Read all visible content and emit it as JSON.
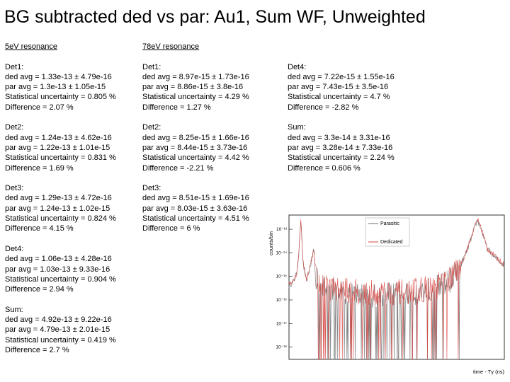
{
  "title": "BG subtracted ded vs par: Au1, Sum WF, Unweighted",
  "columns": [
    {
      "heading": "5eV resonance",
      "lines": [
        "",
        "Det1:",
        "ded avg = 1.33e-13 ± 4.79e-16",
        "par avg = 1.3e-13 ± 1.05e-15",
        "Statistical uncertainty = 0.805 %",
        "Difference = 2.07 %",
        "",
        "Det2:",
        "ded avg = 1.24e-13 ± 4.62e-16",
        "par avg = 1.22e-13 ± 1.01e-15",
        "Statistical uncertainty = 0.831 %",
        "Difference = 1.69 %",
        "",
        "Det3:",
        "ded avg = 1.29e-13 ± 4.72e-16",
        "par avg = 1.24e-13 ± 1.02e-15",
        "Statistical uncertainty = 0.824 %",
        "Difference = 4.15 %",
        "",
        "Det4:",
        "ded avg = 1.06e-13 ± 4.28e-16",
        "par avg = 1.03e-13 ± 9.33e-16",
        "Statistical uncertainty = 0.904 %",
        "Difference = 2.94 %",
        "",
        "Sum:",
        "ded avg = 4.92e-13 ± 9.22e-16",
        "par avg = 4.79e-13 ± 2.01e-15",
        "Statistical uncertainty = 0.419 %",
        "Difference = 2.7 %"
      ]
    },
    {
      "heading": "78eV resonance",
      "lines": [
        "",
        "Det1:",
        "ded avg = 8.97e-15 ± 1.73e-16",
        "par avg = 8.86e-15 ± 3.8e-16",
        "Statistical uncertainty = 4.29 %",
        "Difference = 1.27 %",
        "",
        "Det2:",
        "ded avg = 8.25e-15 ± 1.66e-16",
        "par avg = 8.44e-15 ± 3.73e-16",
        "Statistical uncertainty = 4.42 %",
        "Difference = -2.21 %",
        "",
        "Det3:",
        "ded avg = 8.51e-15 ± 1.69e-16",
        "par avg = 8.03e-15 ± 3.63e-16",
        "Statistical uncertainty = 4.51 %",
        "Difference = 6 %"
      ]
    },
    {
      "heading": "",
      "lines": [
        "",
        "Det4:",
        "ded avg = 7.22e-15 ± 1.55e-16",
        "par avg = 7.43e-15 ± 3.5e-16",
        "Statistical uncertainty = 4.7 %",
        "Difference = -2.82 %",
        "",
        "Sum:",
        "ded avg = 3.3e-14 ± 3.31e-16",
        "par avg = 3.28e-14 ± 7.33e-16",
        "Statistical uncertainty = 2.24 %",
        "Difference = 0.606 %"
      ]
    }
  ],
  "chart_data": {
    "type": "line",
    "xlabel": "time - Tγ (ns)",
    "ylabel": "counts/bin",
    "yscale": "log",
    "ylim": [
      3e-19,
      4e-13
    ],
    "yticks": [
      "10⁻¹³",
      "10⁻¹⁴",
      "10⁻¹⁵",
      "10⁻¹⁶",
      "10⁻¹⁷",
      "10⁻¹⁸"
    ],
    "legend_position": "top-right",
    "series": [
      {
        "name": "Parasitic",
        "color": "#6b6b6b",
        "profile": [
          [
            0.0,
            4e-16
          ],
          [
            0.02,
            6e-16
          ],
          [
            0.035,
            1.2e-15
          ],
          [
            0.045,
            8e-15
          ],
          [
            0.055,
            2.5e-13
          ],
          [
            0.065,
            4e-15
          ],
          [
            0.08,
            6e-16
          ],
          [
            0.1,
            3e-15
          ],
          [
            0.115,
            1.5e-14
          ],
          [
            0.125,
            9e-16
          ],
          [
            0.16,
            3e-16
          ],
          [
            0.25,
            2e-16
          ],
          [
            0.4,
            1.5e-16
          ],
          [
            0.55,
            1.8e-16
          ],
          [
            0.68,
            3e-16
          ],
          [
            0.74,
            6e-16
          ],
          [
            0.79,
            2e-15
          ],
          [
            0.83,
            1.5e-14
          ],
          [
            0.86,
            1e-13
          ],
          [
            0.875,
            2.5e-13
          ],
          [
            0.89,
            1.2e-13
          ],
          [
            0.92,
            1.5e-14
          ],
          [
            0.96,
            6e-15
          ],
          [
            1.0,
            3e-15
          ]
        ]
      },
      {
        "name": "Dedicated",
        "color": "#d9443f",
        "profile": [
          [
            0.0,
            5e-16
          ],
          [
            0.02,
            7e-16
          ],
          [
            0.035,
            1.3e-15
          ],
          [
            0.045,
            9e-15
          ],
          [
            0.055,
            2.7e-13
          ],
          [
            0.065,
            4.5e-15
          ],
          [
            0.08,
            7e-16
          ],
          [
            0.1,
            3.2e-15
          ],
          [
            0.115,
            1.6e-14
          ],
          [
            0.125,
            1e-15
          ],
          [
            0.16,
            4e-16
          ],
          [
            0.25,
            2.5e-16
          ],
          [
            0.4,
            2e-16
          ],
          [
            0.55,
            2.2e-16
          ],
          [
            0.68,
            3.5e-16
          ],
          [
            0.74,
            7e-16
          ],
          [
            0.79,
            2.2e-15
          ],
          [
            0.83,
            1.6e-14
          ],
          [
            0.86,
            1.1e-13
          ],
          [
            0.875,
            2.7e-13
          ],
          [
            0.89,
            1.3e-13
          ],
          [
            0.92,
            1.6e-14
          ],
          [
            0.96,
            6.5e-15
          ],
          [
            1.0,
            3.2e-15
          ]
        ]
      }
    ]
  }
}
